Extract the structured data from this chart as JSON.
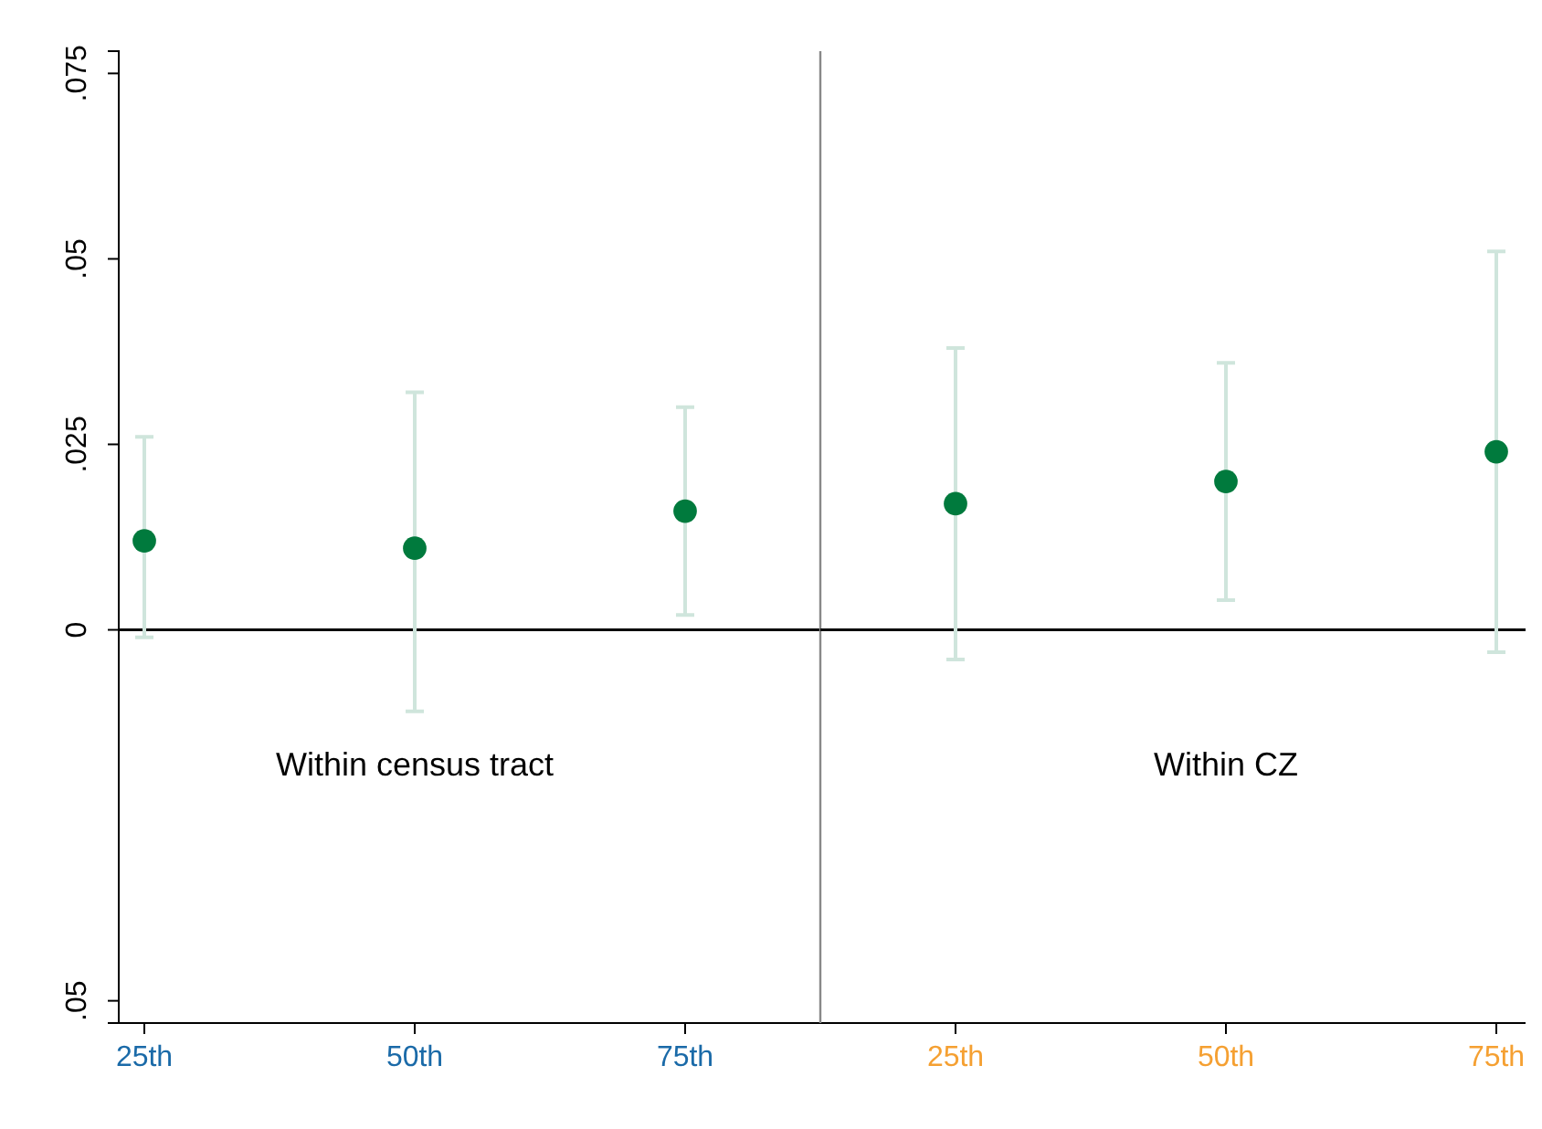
{
  "chart_data": [
    {
      "type": "scatter",
      "categories": [
        "25th",
        "50th",
        "75th"
      ],
      "ylim": [
        -0.053,
        0.078
      ],
      "yticks": [
        {
          "value": -0.05,
          "label": ".05"
        },
        {
          "value": 0,
          "label": "0"
        },
        {
          "value": 0.025,
          "label": ".025"
        },
        {
          "value": 0.05,
          "label": ".05"
        },
        {
          "value": 0.075,
          "label": ".075"
        }
      ],
      "series": [
        {
          "color": "#007a3d",
          "values": [
            0.012,
            0.011,
            0.016
          ],
          "errors": [
            [
              -0.001,
              0.026
            ],
            [
              -0.011,
              0.032
            ],
            [
              0.002,
              0.03
            ]
          ]
        }
      ],
      "marker": "circle",
      "ref_lines": [
        {
          "axis": "y",
          "value": 0,
          "color": "#000000"
        }
      ],
      "annotations": [
        "Within census tract"
      ]
    },
    {
      "type": "scatter",
      "categories": [
        "25th",
        "50th",
        "75th"
      ],
      "ylim": [
        -0.053,
        0.078
      ],
      "tick_labels": "x",
      "series": [
        {
          "color": "#007a3d",
          "values": [
            0.017,
            0.02,
            0.024
          ],
          "errors": [
            [
              -0.004,
              0.038
            ],
            [
              0.004,
              0.036
            ],
            [
              -0.003,
              0.051
            ]
          ]
        }
      ],
      "marker": "circle",
      "ref_lines": [
        {
          "axis": "y",
          "value": 0,
          "color": "#000000"
        }
      ],
      "annotations": [
        "Within CZ"
      ]
    }
  ]
}
